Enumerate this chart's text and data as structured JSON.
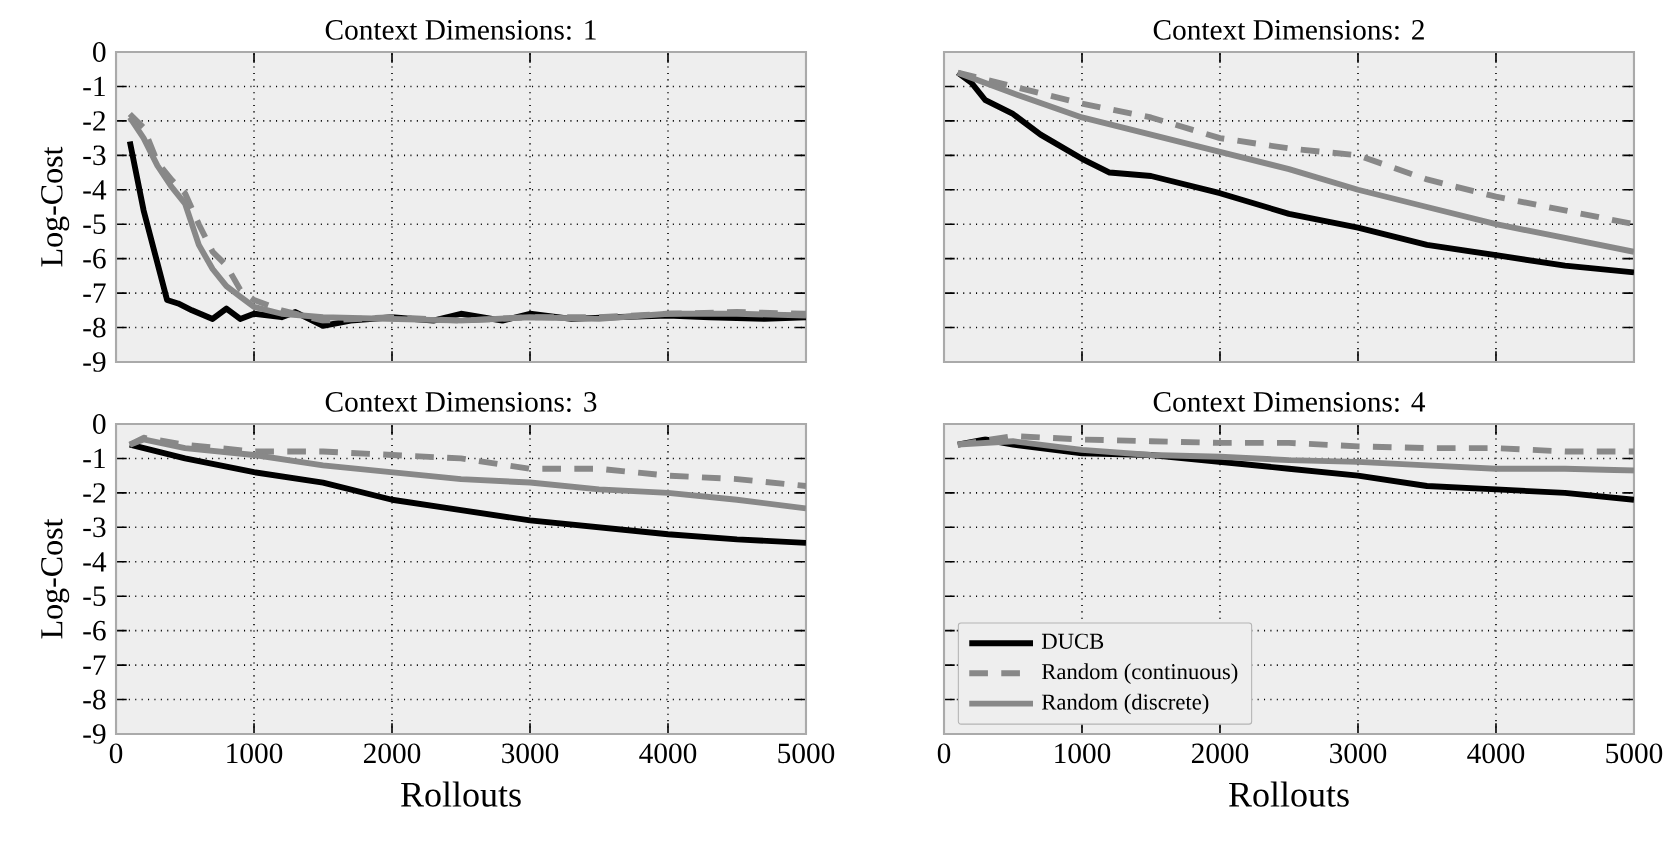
{
  "chart_data": [
    {
      "type": "line",
      "title": "Context Dimensions: 1",
      "ylabel": "Log-Cost",
      "xlim": [
        0,
        5000
      ],
      "ylim": [
        -9,
        0
      ],
      "xticks": [
        0,
        1000,
        2000,
        3000,
        4000,
        5000
      ],
      "yticks": [
        -9,
        -8,
        -7,
        -6,
        -5,
        -4,
        -3,
        -2,
        -1,
        0
      ],
      "grid": true,
      "tick_labels": "y",
      "marker": "none",
      "series": [
        {
          "color": "#000000",
          "line_style": "solid",
          "x": [
            100,
            200,
            370,
            450,
            550,
            700,
            800,
            900,
            1000,
            1200,
            1300,
            1500,
            1700,
            2000,
            2300,
            2500,
            2800,
            3000,
            3300,
            3600,
            4000,
            4300,
            4700,
            5000
          ],
          "values": [
            -2.6,
            -4.6,
            -7.2,
            -7.3,
            -7.5,
            -7.75,
            -7.45,
            -7.75,
            -7.6,
            -7.7,
            -7.55,
            -7.95,
            -7.8,
            -7.7,
            -7.8,
            -7.6,
            -7.8,
            -7.6,
            -7.75,
            -7.7,
            -7.65,
            -7.7,
            -7.75,
            -7.7
          ]
        },
        {
          "color": "#888888",
          "line_style": "dashed",
          "x": [
            100,
            200,
            300,
            400,
            500,
            600,
            700,
            800,
            900,
            1000,
            1200,
            1500,
            2000,
            2500,
            3000,
            3500,
            4000,
            4500,
            5000
          ],
          "values": [
            -1.8,
            -2.2,
            -3.2,
            -3.7,
            -4.1,
            -5.0,
            -5.8,
            -6.2,
            -6.9,
            -7.2,
            -7.5,
            -7.8,
            -7.7,
            -7.8,
            -7.7,
            -7.7,
            -7.6,
            -7.55,
            -7.6
          ]
        },
        {
          "color": "#888888",
          "line_style": "solid",
          "x": [
            100,
            200,
            300,
            400,
            500,
            600,
            700,
            800,
            900,
            1000,
            1200,
            1500,
            2000,
            2500,
            3000,
            3500,
            4000,
            4500,
            5000
          ],
          "values": [
            -1.9,
            -2.5,
            -3.3,
            -3.9,
            -4.4,
            -5.6,
            -6.3,
            -6.8,
            -7.1,
            -7.4,
            -7.6,
            -7.7,
            -7.75,
            -7.8,
            -7.7,
            -7.75,
            -7.6,
            -7.6,
            -7.65
          ]
        }
      ]
    },
    {
      "type": "line",
      "title": "Context Dimensions: 2",
      "xlim": [
        0,
        5000
      ],
      "ylim": [
        -9,
        0
      ],
      "xticks": [
        0,
        1000,
        2000,
        3000,
        4000,
        5000
      ],
      "yticks": [
        -9,
        -8,
        -7,
        -6,
        -5,
        -4,
        -3,
        -2,
        -1,
        0
      ],
      "grid": true,
      "tick_labels": false,
      "marker": "none",
      "series": [
        {
          "color": "#000000",
          "line_style": "solid",
          "x": [
            100,
            200,
            300,
            500,
            700,
            1000,
            1200,
            1500,
            2000,
            2500,
            3000,
            3500,
            4000,
            4500,
            5000
          ],
          "values": [
            -0.6,
            -0.9,
            -1.4,
            -1.8,
            -2.4,
            -3.1,
            -3.5,
            -3.6,
            -4.1,
            -4.7,
            -5.1,
            -5.6,
            -5.9,
            -6.2,
            -6.4
          ]
        },
        {
          "color": "#888888",
          "line_style": "dashed",
          "x": [
            100,
            500,
            1000,
            1500,
            2000,
            2500,
            3000,
            3500,
            4000,
            4500,
            5000
          ],
          "values": [
            -0.6,
            -1.0,
            -1.5,
            -1.9,
            -2.5,
            -2.8,
            -3.0,
            -3.7,
            -4.2,
            -4.6,
            -5.0
          ]
        },
        {
          "color": "#888888",
          "line_style": "solid",
          "x": [
            100,
            500,
            1000,
            1500,
            2000,
            2500,
            3000,
            3500,
            4000,
            4500,
            5000
          ],
          "values": [
            -0.6,
            -1.2,
            -1.9,
            -2.4,
            -2.9,
            -3.4,
            -4.0,
            -4.5,
            -5.0,
            -5.4,
            -5.8
          ]
        }
      ]
    },
    {
      "type": "line",
      "title": "Context Dimensions: 3",
      "xlabel": "Rollouts",
      "ylabel": "Log-Cost",
      "xlim": [
        0,
        5000
      ],
      "ylim": [
        -9,
        0
      ],
      "xticks": [
        0,
        1000,
        2000,
        3000,
        4000,
        5000
      ],
      "yticks": [
        -9,
        -8,
        -7,
        -6,
        -5,
        -4,
        -3,
        -2,
        -1,
        0
      ],
      "grid": true,
      "marker": "none",
      "series": [
        {
          "color": "#000000",
          "line_style": "solid",
          "x": [
            100,
            500,
            1000,
            1500,
            2000,
            2500,
            3000,
            3500,
            4000,
            4500,
            5000
          ],
          "values": [
            -0.6,
            -1.0,
            -1.4,
            -1.7,
            -2.2,
            -2.5,
            -2.8,
            -3.0,
            -3.2,
            -3.35,
            -3.45
          ]
        },
        {
          "color": "#888888",
          "line_style": "dashed",
          "x": [
            100,
            200,
            500,
            1000,
            1500,
            2000,
            2500,
            3000,
            3500,
            4000,
            4500,
            5000
          ],
          "values": [
            -0.6,
            -0.4,
            -0.6,
            -0.8,
            -0.8,
            -0.9,
            -1.0,
            -1.3,
            -1.3,
            -1.5,
            -1.6,
            -1.8
          ]
        },
        {
          "color": "#888888",
          "line_style": "solid",
          "x": [
            100,
            200,
            500,
            1000,
            1500,
            2000,
            2500,
            3000,
            3500,
            4000,
            4500,
            5000
          ],
          "values": [
            -0.6,
            -0.45,
            -0.7,
            -0.9,
            -1.2,
            -1.4,
            -1.6,
            -1.7,
            -1.9,
            -2.0,
            -2.2,
            -2.45
          ]
        }
      ]
    },
    {
      "type": "line",
      "title": "Context Dimensions: 4",
      "xlabel": "Rollouts",
      "xlim": [
        0,
        5000
      ],
      "ylim": [
        -9,
        0
      ],
      "xticks": [
        0,
        1000,
        2000,
        3000,
        4000,
        5000
      ],
      "yticks": [
        -9,
        -8,
        -7,
        -6,
        -5,
        -4,
        -3,
        -2,
        -1,
        0
      ],
      "grid": true,
      "tick_labels": "x",
      "marker": "none",
      "legend": "bottom left",
      "series": [
        {
          "name": "DUCB",
          "color": "#000000",
          "line_style": "solid",
          "x": [
            100,
            300,
            500,
            1000,
            1500,
            2000,
            2500,
            3000,
            3500,
            4000,
            4500,
            5000
          ],
          "values": [
            -0.6,
            -0.45,
            -0.6,
            -0.85,
            -0.9,
            -1.1,
            -1.3,
            -1.5,
            -1.8,
            -1.9,
            -2.0,
            -2.2
          ]
        },
        {
          "name": "Random (continuous)",
          "color": "#888888",
          "line_style": "dashed",
          "x": [
            100,
            500,
            1000,
            1500,
            2000,
            2500,
            3000,
            3500,
            4000,
            4500,
            5000
          ],
          "values": [
            -0.6,
            -0.35,
            -0.45,
            -0.5,
            -0.55,
            -0.55,
            -0.65,
            -0.7,
            -0.7,
            -0.8,
            -0.8
          ]
        },
        {
          "name": "Random (discrete)",
          "color": "#888888",
          "line_style": "solid",
          "x": [
            100,
            500,
            1000,
            1500,
            2000,
            2500,
            3000,
            3500,
            4000,
            4500,
            5000
          ],
          "values": [
            -0.6,
            -0.5,
            -0.75,
            -0.9,
            -0.95,
            -1.05,
            -1.1,
            -1.2,
            -1.3,
            -1.3,
            -1.35
          ]
        }
      ]
    }
  ]
}
